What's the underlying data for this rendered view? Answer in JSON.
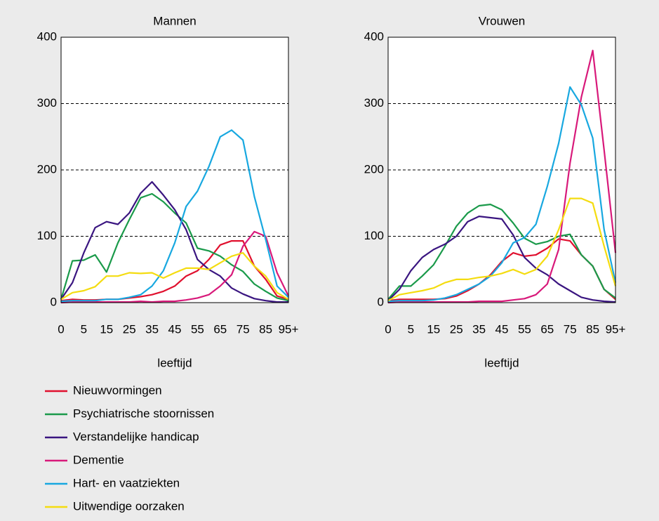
{
  "legend": [
    {
      "name": "Nieuwvormingen",
      "color": "#e0102e"
    },
    {
      "name": "Psychiatrische stoornissen",
      "color": "#1a9a4a"
    },
    {
      "name": "Verstandelijke handicap",
      "color": "#3a1580"
    },
    {
      "name": "Dementie",
      "color": "#d8197a"
    },
    {
      "name": "Hart- en vaatziekten",
      "color": "#18a8e0"
    },
    {
      "name": "Uitwendige oorzaken",
      "color": "#f4dc10"
    }
  ],
  "chart_data": [
    {
      "type": "line",
      "title": "Mannen",
      "xlabel": "leeftijd",
      "categories": [
        "0",
        null,
        "5",
        null,
        "15",
        null,
        "25",
        null,
        "35",
        null,
        "45",
        null,
        "55",
        null,
        "65",
        null,
        "75",
        null,
        "85",
        null,
        "95+"
      ],
      "ylim": [
        0,
        400
      ],
      "yticks": [
        0,
        100,
        200,
        300,
        400
      ],
      "grid": true,
      "series": [
        {
          "values": [
            3,
            5,
            4,
            4,
            5,
            5,
            7,
            9,
            12,
            17,
            25,
            40,
            48,
            65,
            87,
            93,
            93,
            55,
            35,
            10,
            5
          ]
        },
        {
          "values": [
            5,
            63,
            64,
            72,
            46,
            90,
            125,
            158,
            164,
            152,
            135,
            120,
            82,
            78,
            70,
            57,
            47,
            28,
            17,
            7,
            3
          ]
        },
        {
          "values": [
            5,
            30,
            75,
            113,
            122,
            118,
            135,
            165,
            182,
            162,
            140,
            110,
            65,
            50,
            40,
            22,
            13,
            6,
            3,
            1,
            1
          ]
        },
        {
          "values": [
            0,
            1,
            1,
            1,
            1,
            1,
            1,
            2,
            1,
            2,
            2,
            4,
            7,
            12,
            25,
            42,
            85,
            107,
            100,
            45,
            10
          ]
        },
        {
          "values": [
            2,
            3,
            3,
            3,
            5,
            5,
            8,
            12,
            25,
            48,
            90,
            145,
            168,
            205,
            250,
            260,
            245,
            160,
            95,
            25,
            8
          ]
        },
        {
          "values": [
            5,
            15,
            18,
            24,
            40,
            40,
            45,
            44,
            45,
            37,
            45,
            52,
            52,
            50,
            60,
            70,
            75,
            55,
            40,
            15,
            5
          ]
        }
      ]
    },
    {
      "type": "line",
      "title": "Vrouwen",
      "xlabel": "leeftijd",
      "categories": [
        "0",
        null,
        "5",
        null,
        "15",
        null,
        "25",
        null,
        "35",
        null,
        "45",
        null,
        "55",
        null,
        "65",
        null,
        "75",
        null,
        "85",
        null,
        "95+"
      ],
      "ylim": [
        0,
        400
      ],
      "yticks": [
        0,
        100,
        200,
        300,
        400
      ],
      "grid": true,
      "series": [
        {
          "values": [
            3,
            5,
            5,
            5,
            5,
            6,
            10,
            18,
            28,
            42,
            62,
            75,
            70,
            72,
            82,
            96,
            93,
            72,
            55,
            20,
            5
          ]
        },
        {
          "values": [
            5,
            25,
            25,
            40,
            57,
            85,
            115,
            135,
            146,
            148,
            140,
            120,
            97,
            88,
            92,
            100,
            103,
            72,
            55,
            20,
            7
          ]
        },
        {
          "values": [
            3,
            20,
            48,
            68,
            80,
            88,
            100,
            122,
            130,
            128,
            126,
            102,
            68,
            52,
            42,
            28,
            18,
            8,
            4,
            2,
            1
          ]
        },
        {
          "values": [
            0,
            1,
            1,
            1,
            1,
            1,
            1,
            1,
            2,
            2,
            2,
            4,
            6,
            12,
            28,
            80,
            210,
            310,
            380,
            230,
            75
          ]
        },
        {
          "values": [
            2,
            3,
            3,
            3,
            4,
            7,
            12,
            20,
            28,
            40,
            60,
            90,
            98,
            118,
            175,
            240,
            325,
            298,
            248,
            110,
            30
          ]
        },
        {
          "values": [
            3,
            12,
            15,
            18,
            22,
            30,
            35,
            35,
            38,
            40,
            44,
            50,
            43,
            50,
            70,
            110,
            157,
            157,
            150,
            85,
            25
          ]
        }
      ]
    }
  ]
}
